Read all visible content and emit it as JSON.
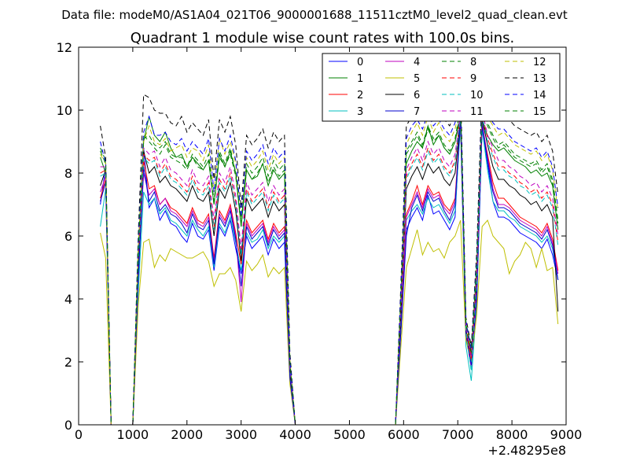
{
  "chart_data": {
    "type": "line",
    "suptitle": "Data file: modeM0/AS1A04_021T06_9000001688_11511cztM0_level2_quad_clean.evt",
    "title": "Quadrant 1 module wise count rates with 100.0s bins.",
    "xlabel": "",
    "ylabel": "",
    "x_offset_label": "+2.48295e8",
    "xlim": [
      0,
      9000
    ],
    "ylim": [
      0,
      12
    ],
    "xticks": [
      0,
      1000,
      2000,
      3000,
      4000,
      5000,
      6000,
      7000,
      8000,
      9000
    ],
    "yticks": [
      0,
      2,
      4,
      6,
      8,
      10,
      12
    ],
    "legend_position": "top-right",
    "legend_columns": 4,
    "x": [
      400,
      500,
      600,
      700,
      800,
      900,
      1000,
      1100,
      1200,
      1300,
      1400,
      1500,
      1600,
      1700,
      1800,
      1900,
      2000,
      2100,
      2200,
      2300,
      2400,
      2500,
      2600,
      2700,
      2800,
      2900,
      3000,
      3100,
      3200,
      3300,
      3400,
      3500,
      3600,
      3700,
      3800,
      3900,
      4000,
      5850,
      5950,
      6050,
      6150,
      6250,
      6350,
      6450,
      6550,
      6650,
      6750,
      6850,
      6950,
      7050,
      7150,
      7250,
      7350,
      7450,
      7550,
      7650,
      7750,
      7850,
      7950,
      8050,
      8150,
      8250,
      8350,
      8450,
      8550,
      8650,
      8750,
      8850
    ],
    "series": [
      {
        "name": "0",
        "color": "#0000ff",
        "dash": "solid",
        "values": [
          7.0,
          8.2,
          0,
          0,
          0,
          0,
          0,
          4.5,
          8.8,
          6.9,
          7.2,
          6.5,
          6.8,
          6.4,
          6.3,
          6.0,
          5.8,
          6.4,
          6.0,
          5.9,
          6.2,
          4.9,
          6.3,
          6.0,
          6.5,
          5.6,
          4.8,
          6.0,
          5.6,
          5.8,
          6.0,
          5.4,
          5.9,
          5.6,
          5.8,
          1.5,
          0,
          0,
          3.0,
          6.2,
          6.6,
          6.9,
          6.5,
          7.3,
          6.7,
          6.8,
          6.5,
          6.2,
          6.6,
          9.8,
          3.0,
          2.0,
          4.0,
          9.5,
          8.3,
          7.1,
          6.6,
          6.6,
          6.5,
          6.3,
          6.1,
          6.0,
          5.9,
          5.8,
          5.6,
          5.9,
          5.4,
          4.6
        ]
      },
      {
        "name": "1",
        "color": "#008000",
        "dash": "solid",
        "values": [
          8.5,
          8.0,
          0,
          0,
          0,
          0,
          0,
          5.5,
          9.0,
          9.8,
          9.2,
          9.0,
          9.3,
          8.8,
          8.5,
          8.6,
          8.2,
          8.5,
          8.3,
          8.1,
          8.4,
          7.0,
          8.6,
          8.2,
          8.7,
          8.0,
          6.3,
          8.1,
          7.8,
          7.9,
          8.3,
          7.6,
          8.1,
          7.8,
          8.0,
          2.0,
          0,
          0,
          4.0,
          8.3,
          8.7,
          9.0,
          8.8,
          9.5,
          8.9,
          9.2,
          8.8,
          8.6,
          9.0,
          9.8,
          3.0,
          2.2,
          5.0,
          9.6,
          9.2,
          8.9,
          8.7,
          8.8,
          8.6,
          8.4,
          8.3,
          8.2,
          8.0,
          8.1,
          7.9,
          8.0,
          7.6,
          6.2
        ]
      },
      {
        "name": "2",
        "color": "#ff0000",
        "dash": "solid",
        "values": [
          7.2,
          7.8,
          0,
          0,
          0,
          0,
          0,
          4.7,
          8.4,
          7.5,
          7.6,
          7.0,
          7.2,
          6.9,
          6.8,
          6.6,
          6.4,
          6.9,
          6.5,
          6.4,
          6.7,
          5.3,
          6.8,
          6.5,
          7.0,
          6.1,
          5.1,
          6.5,
          6.1,
          6.3,
          6.5,
          5.9,
          6.4,
          6.1,
          6.3,
          1.6,
          0,
          0,
          3.2,
          6.7,
          7.1,
          7.6,
          7.0,
          7.6,
          7.3,
          7.4,
          7.0,
          6.8,
          7.2,
          9.8,
          3.0,
          2.0,
          4.2,
          9.5,
          8.6,
          7.7,
          7.2,
          7.2,
          7.0,
          6.8,
          6.6,
          6.5,
          6.4,
          6.3,
          6.1,
          6.4,
          5.9,
          4.9
        ]
      },
      {
        "name": "3",
        "color": "#00bfbf",
        "dash": "solid",
        "values": [
          6.3,
          7.5,
          0,
          0,
          0,
          0,
          0,
          4.2,
          7.4,
          7.0,
          7.2,
          6.7,
          6.9,
          6.5,
          6.4,
          6.2,
          6.0,
          6.5,
          6.2,
          6.0,
          6.3,
          5.0,
          6.4,
          6.1,
          6.6,
          5.8,
          4.9,
          6.1,
          5.8,
          5.9,
          6.2,
          5.6,
          6.0,
          5.8,
          6.0,
          1.5,
          0,
          0,
          3.0,
          6.5,
          6.8,
          7.0,
          6.7,
          7.2,
          6.9,
          7.0,
          6.7,
          6.4,
          6.8,
          9.5,
          2.5,
          1.4,
          3.8,
          9.4,
          8.1,
          7.1,
          6.8,
          6.8,
          6.6,
          6.5,
          6.3,
          6.2,
          6.1,
          6.0,
          5.8,
          6.0,
          5.6,
          4.6
        ]
      },
      {
        "name": "4",
        "color": "#bf00bf",
        "dash": "solid",
        "values": [
          7.4,
          7.9,
          0,
          0,
          0,
          0,
          0,
          4.8,
          8.0,
          7.3,
          7.5,
          7.0,
          7.2,
          6.8,
          6.7,
          6.5,
          6.3,
          6.8,
          6.4,
          6.3,
          6.6,
          5.2,
          6.7,
          6.4,
          6.9,
          6.0,
          3.9,
          6.4,
          6.0,
          6.2,
          6.4,
          5.8,
          6.3,
          6.0,
          6.2,
          1.6,
          0,
          0,
          3.1,
          6.6,
          7.0,
          7.4,
          6.9,
          7.5,
          7.2,
          7.3,
          6.9,
          6.7,
          7.1,
          9.7,
          2.8,
          1.8,
          4.0,
          9.6,
          8.5,
          7.5,
          7.0,
          7.0,
          6.9,
          6.7,
          6.5,
          6.4,
          6.3,
          6.2,
          6.0,
          6.3,
          5.8,
          4.8
        ]
      },
      {
        "name": "5",
        "color": "#bfbf00",
        "dash": "solid",
        "values": [
          6.1,
          5.3,
          0,
          0,
          0,
          0,
          0,
          3.8,
          5.8,
          5.9,
          5.0,
          5.4,
          5.2,
          5.6,
          5.5,
          5.4,
          5.3,
          5.3,
          5.4,
          5.5,
          5.2,
          4.4,
          4.8,
          4.8,
          5.0,
          4.6,
          3.6,
          5.2,
          4.9,
          5.1,
          5.4,
          4.7,
          5.0,
          4.8,
          5.0,
          1.3,
          0,
          0,
          2.5,
          5.0,
          5.6,
          6.2,
          5.4,
          5.8,
          5.5,
          5.6,
          5.3,
          5.8,
          6.0,
          6.5,
          2.7,
          2.0,
          3.5,
          6.3,
          6.5,
          6.0,
          5.8,
          5.6,
          4.8,
          5.2,
          5.4,
          5.8,
          5.6,
          5.0,
          5.6,
          4.9,
          5.0,
          3.2
        ]
      },
      {
        "name": "6",
        "color": "#000000",
        "dash": "solid",
        "values": [
          7.6,
          8.1,
          0,
          0,
          0,
          0,
          0,
          5.0,
          8.7,
          8.0,
          8.2,
          7.7,
          7.9,
          7.6,
          7.5,
          7.3,
          7.1,
          7.6,
          7.2,
          7.1,
          7.4,
          6.0,
          7.5,
          7.2,
          7.7,
          6.8,
          5.2,
          7.2,
          6.8,
          7.0,
          7.2,
          6.6,
          7.1,
          6.8,
          7.0,
          1.8,
          0,
          0,
          3.5,
          7.5,
          7.9,
          8.2,
          7.8,
          8.3,
          8.0,
          8.2,
          7.8,
          7.6,
          8.0,
          9.7,
          3.0,
          2.3,
          4.5,
          9.7,
          8.9,
          8.2,
          7.8,
          7.8,
          7.6,
          7.5,
          7.3,
          7.2,
          7.0,
          7.1,
          6.8,
          7.0,
          6.6,
          3.6
        ]
      },
      {
        "name": "7",
        "color": "#0000cc",
        "dash": "solid",
        "values": [
          7.1,
          7.7,
          0,
          0,
          0,
          0,
          0,
          4.6,
          8.2,
          7.1,
          7.4,
          6.8,
          7.0,
          6.7,
          6.6,
          6.4,
          6.1,
          6.7,
          6.3,
          6.2,
          6.5,
          5.1,
          6.6,
          6.3,
          6.8,
          5.9,
          4.4,
          6.3,
          5.9,
          6.1,
          6.3,
          5.7,
          6.2,
          5.9,
          6.1,
          1.5,
          0,
          0,
          3.0,
          6.0,
          6.9,
          7.3,
          6.8,
          7.4,
          7.1,
          7.2,
          6.8,
          6.5,
          7.0,
          9.7,
          2.9,
          1.9,
          4.1,
          9.5,
          8.4,
          7.4,
          6.9,
          6.9,
          6.8,
          6.6,
          6.4,
          6.3,
          6.2,
          6.1,
          5.9,
          6.2,
          5.7,
          4.6
        ]
      },
      {
        "name": "8",
        "color": "#008000",
        "dash": "dashed",
        "values": [
          8.8,
          8.4,
          0,
          0,
          0,
          0,
          0,
          5.6,
          9.2,
          9.0,
          8.8,
          8.6,
          8.9,
          8.5,
          8.4,
          8.3,
          8.1,
          8.5,
          8.2,
          8.1,
          8.4,
          7.0,
          8.5,
          8.2,
          8.6,
          7.9,
          6.3,
          8.1,
          7.8,
          8.0,
          8.3,
          7.7,
          8.2,
          7.9,
          8.1,
          2.0,
          0,
          0,
          4.0,
          8.6,
          8.9,
          9.2,
          8.8,
          9.4,
          9.0,
          9.2,
          8.8,
          8.6,
          9.0,
          10.0,
          3.2,
          2.3,
          5.0,
          10.0,
          9.5,
          9.1,
          8.8,
          8.9,
          8.7,
          8.5,
          8.4,
          8.3,
          8.2,
          8.3,
          8.0,
          8.2,
          7.7,
          6.4
        ]
      },
      {
        "name": "9",
        "color": "#ff0000",
        "dash": "dashed",
        "values": [
          8.0,
          8.1,
          0,
          0,
          0,
          0,
          0,
          5.3,
          8.6,
          8.4,
          8.5,
          8.0,
          8.3,
          7.9,
          7.8,
          7.6,
          7.4,
          7.9,
          7.5,
          7.4,
          7.7,
          6.3,
          7.8,
          7.5,
          8.0,
          7.1,
          5.5,
          7.5,
          7.1,
          7.3,
          7.5,
          6.9,
          7.4,
          7.1,
          7.3,
          1.9,
          0,
          0,
          3.7,
          7.9,
          8.3,
          8.6,
          8.2,
          8.8,
          8.4,
          8.6,
          8.2,
          8.0,
          8.4,
          9.9,
          3.1,
          2.1,
          4.6,
          9.9,
          9.1,
          8.6,
          8.2,
          8.2,
          8.0,
          7.9,
          7.7,
          7.6,
          7.4,
          7.5,
          7.2,
          7.4,
          7.0,
          5.8
        ]
      },
      {
        "name": "10",
        "color": "#00bfbf",
        "dash": "dashed",
        "values": [
          7.9,
          8.0,
          0,
          0,
          0,
          0,
          0,
          5.2,
          8.5,
          8.3,
          8.4,
          7.9,
          8.2,
          7.8,
          7.7,
          7.5,
          7.3,
          7.8,
          7.4,
          7.3,
          7.6,
          6.2,
          7.7,
          7.4,
          7.9,
          7.0,
          5.4,
          7.4,
          7.0,
          7.2,
          7.4,
          6.8,
          7.3,
          7.0,
          7.2,
          1.8,
          0,
          0,
          3.6,
          7.8,
          8.2,
          8.5,
          8.1,
          8.7,
          8.3,
          8.5,
          8.1,
          7.9,
          8.3,
          9.8,
          3.0,
          1.7,
          4.5,
          9.8,
          9.0,
          8.5,
          8.1,
          8.1,
          7.9,
          7.8,
          7.6,
          7.5,
          7.3,
          7.4,
          7.1,
          7.3,
          6.9,
          5.7
        ]
      },
      {
        "name": "11",
        "color": "#bf00bf",
        "dash": "dashed",
        "values": [
          8.2,
          8.2,
          0,
          0,
          0,
          0,
          0,
          5.4,
          8.8,
          8.6,
          8.7,
          8.2,
          8.5,
          8.1,
          8.0,
          7.8,
          7.6,
          8.1,
          7.7,
          7.6,
          7.9,
          6.5,
          8.0,
          7.7,
          8.2,
          7.3,
          5.6,
          7.7,
          7.3,
          7.5,
          7.7,
          7.1,
          7.6,
          7.3,
          7.5,
          1.9,
          0,
          0,
          3.8,
          8.1,
          8.5,
          8.8,
          8.4,
          9.0,
          8.6,
          8.8,
          8.4,
          8.2,
          8.6,
          9.9,
          3.1,
          2.2,
          4.7,
          10.0,
          9.2,
          8.8,
          8.4,
          8.4,
          8.2,
          8.1,
          7.9,
          7.8,
          7.6,
          7.7,
          7.4,
          7.6,
          7.2,
          6.0
        ]
      },
      {
        "name": "12",
        "color": "#bfbf00",
        "dash": "dashed",
        "values": [
          8.6,
          8.3,
          0,
          0,
          0,
          0,
          0,
          5.6,
          9.0,
          9.5,
          9.0,
          8.9,
          9.1,
          8.7,
          8.8,
          8.9,
          8.5,
          8.8,
          8.7,
          8.4,
          8.9,
          7.4,
          9.1,
          8.6,
          9.0,
          8.3,
          6.6,
          8.5,
          8.2,
          8.4,
          8.7,
          8.1,
          8.6,
          8.3,
          8.5,
          2.1,
          0,
          0,
          4.2,
          8.9,
          9.3,
          9.6,
          9.2,
          9.8,
          9.3,
          9.6,
          9.2,
          9.0,
          9.4,
          10.2,
          3.3,
          2.4,
          5.2,
          10.3,
          9.8,
          9.5,
          9.2,
          9.3,
          9.1,
          8.9,
          8.8,
          8.7,
          8.6,
          8.7,
          8.4,
          8.6,
          8.1,
          6.8
        ]
      },
      {
        "name": "13",
        "color": "#000000",
        "dash": "dashed",
        "values": [
          9.5,
          8.5,
          0,
          0,
          0,
          0,
          0,
          6.0,
          10.5,
          10.4,
          10.0,
          9.9,
          9.9,
          9.6,
          9.5,
          9.8,
          9.3,
          9.6,
          9.4,
          9.2,
          9.7,
          7.8,
          9.7,
          9.3,
          9.8,
          8.9,
          6.9,
          9.2,
          8.9,
          9.1,
          9.4,
          8.8,
          9.3,
          9.0,
          9.2,
          2.3,
          0,
          0,
          4.5,
          9.5,
          9.8,
          10.0,
          9.7,
          10.3,
          9.8,
          10.1,
          9.7,
          9.5,
          9.9,
          10.8,
          3.4,
          2.5,
          5.5,
          10.8,
          10.4,
          10.1,
          9.8,
          9.9,
          9.7,
          9.5,
          9.4,
          9.3,
          9.2,
          9.3,
          9.0,
          9.2,
          8.7,
          7.3
        ]
      },
      {
        "name": "14",
        "color": "#0000ff",
        "dash": "dashed",
        "values": [
          9.0,
          8.3,
          0,
          0,
          0,
          0,
          0,
          5.8,
          9.3,
          9.8,
          9.2,
          9.2,
          9.3,
          9.0,
          8.9,
          9.1,
          8.7,
          9.0,
          8.8,
          8.6,
          9.1,
          7.4,
          9.1,
          8.7,
          9.2,
          8.4,
          6.6,
          8.7,
          8.4,
          8.6,
          8.9,
          8.3,
          8.8,
          8.5,
          8.7,
          2.1,
          0,
          0,
          4.3,
          9.1,
          9.5,
          9.7,
          9.4,
          9.9,
          9.5,
          9.7,
          9.4,
          9.2,
          9.6,
          10.4,
          3.3,
          2.4,
          5.3,
          10.4,
          9.9,
          9.6,
          9.4,
          9.4,
          9.2,
          9.0,
          8.9,
          8.8,
          8.7,
          8.8,
          8.5,
          8.7,
          8.2,
          6.9
        ]
      },
      {
        "name": "15",
        "color": "#008000",
        "dash": "dashed",
        "values": [
          8.7,
          8.3,
          0,
          0,
          0,
          0,
          0,
          5.6,
          9.1,
          9.2,
          8.9,
          8.8,
          9.0,
          8.6,
          8.5,
          8.5,
          8.2,
          8.6,
          8.4,
          8.2,
          8.6,
          7.1,
          8.7,
          8.3,
          8.8,
          8.0,
          6.4,
          8.3,
          8.0,
          8.2,
          8.5,
          7.9,
          8.4,
          8.1,
          8.3,
          2.0,
          0,
          0,
          4.1,
          8.7,
          9.0,
          9.3,
          8.9,
          9.5,
          9.1,
          9.3,
          8.9,
          8.7,
          9.1,
          10.1,
          3.2,
          2.3,
          5.1,
          10.1,
          9.6,
          9.2,
          8.9,
          9.0,
          8.8,
          8.6,
          8.5,
          8.4,
          8.3,
          8.4,
          8.1,
          8.3,
          7.8,
          6.5
        ]
      }
    ]
  }
}
